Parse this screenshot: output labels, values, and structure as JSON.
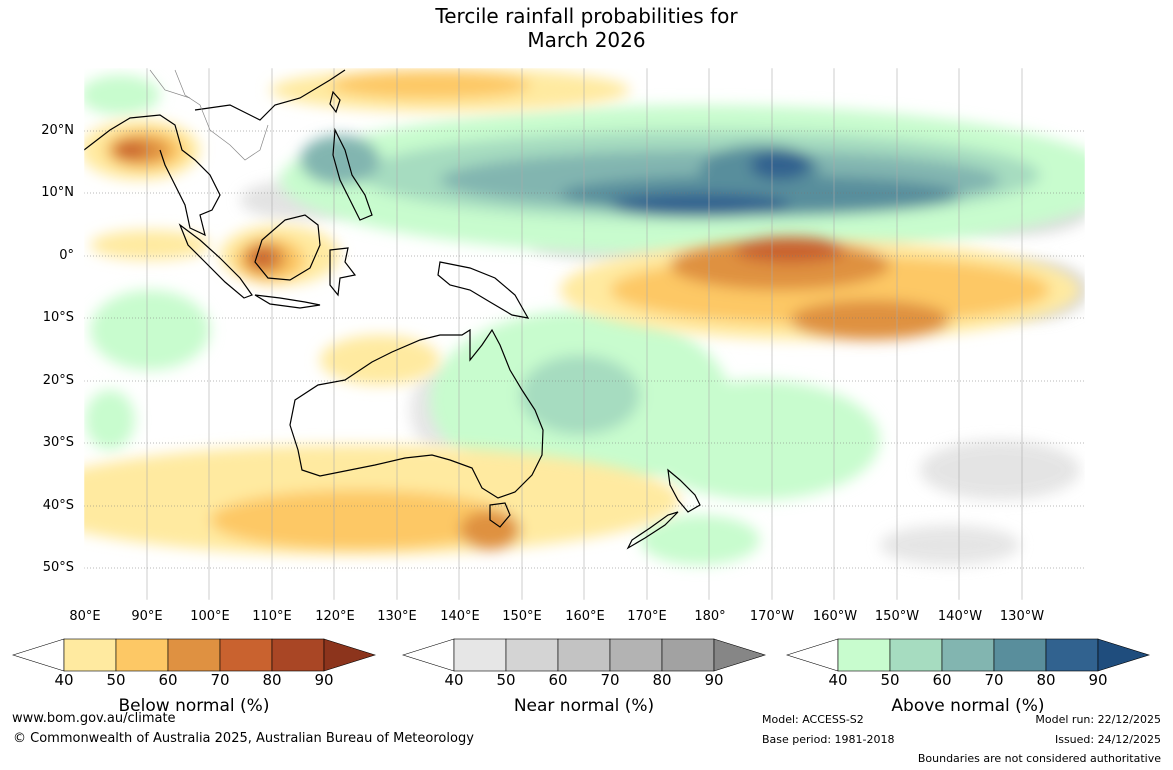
{
  "title_line1": "Tercile rainfall probabilities for",
  "title_line2": "March 2026",
  "lat_labels": [
    "20°N",
    "10°N",
    "0°",
    "10°S",
    "20°S",
    "30°S",
    "40°S",
    "50°S"
  ],
  "lon_labels": [
    "80°E",
    "90°E",
    "100°E",
    "110°E",
    "120°E",
    "130°E",
    "140°E",
    "150°E",
    "160°E",
    "170°E",
    "180°",
    "170°W",
    "160°W",
    "150°W",
    "140°W",
    "130°W"
  ],
  "legends": [
    {
      "label": "Below normal (%)",
      "colors": [
        "#ffffff",
        "#ffeaa0",
        "#fdc865",
        "#df9141",
        "#c9622f",
        "#a94625",
        "#8c341c"
      ]
    },
    {
      "label": "Near normal (%)",
      "colors": [
        "#ffffff",
        "#e6e6e6",
        "#d4d4d4",
        "#c3c3c3",
        "#b3b3b3",
        "#a2a2a2",
        "#868686"
      ]
    },
    {
      "label": "Above normal (%)",
      "colors": [
        "#ffffff",
        "#c8fcce",
        "#a6dcc0",
        "#82b5b0",
        "#598e9c",
        "#31628f",
        "#1f4d7d"
      ]
    }
  ],
  "legend_ticks": [
    "40",
    "50",
    "60",
    "70",
    "80",
    "90"
  ],
  "footer": {
    "url": "www.bom.gov.au/climate",
    "copyright": "© Commonwealth of Australia 2025, Australian Bureau of Meteorology",
    "model": "Model: ACCESS-S2",
    "base_period": "Base period: 1981-2018",
    "model_run": "Model run: 22/12/2025",
    "issued": "Issued: 24/12/2025",
    "disclaimer": "Boundaries are not considered authoritative"
  }
}
